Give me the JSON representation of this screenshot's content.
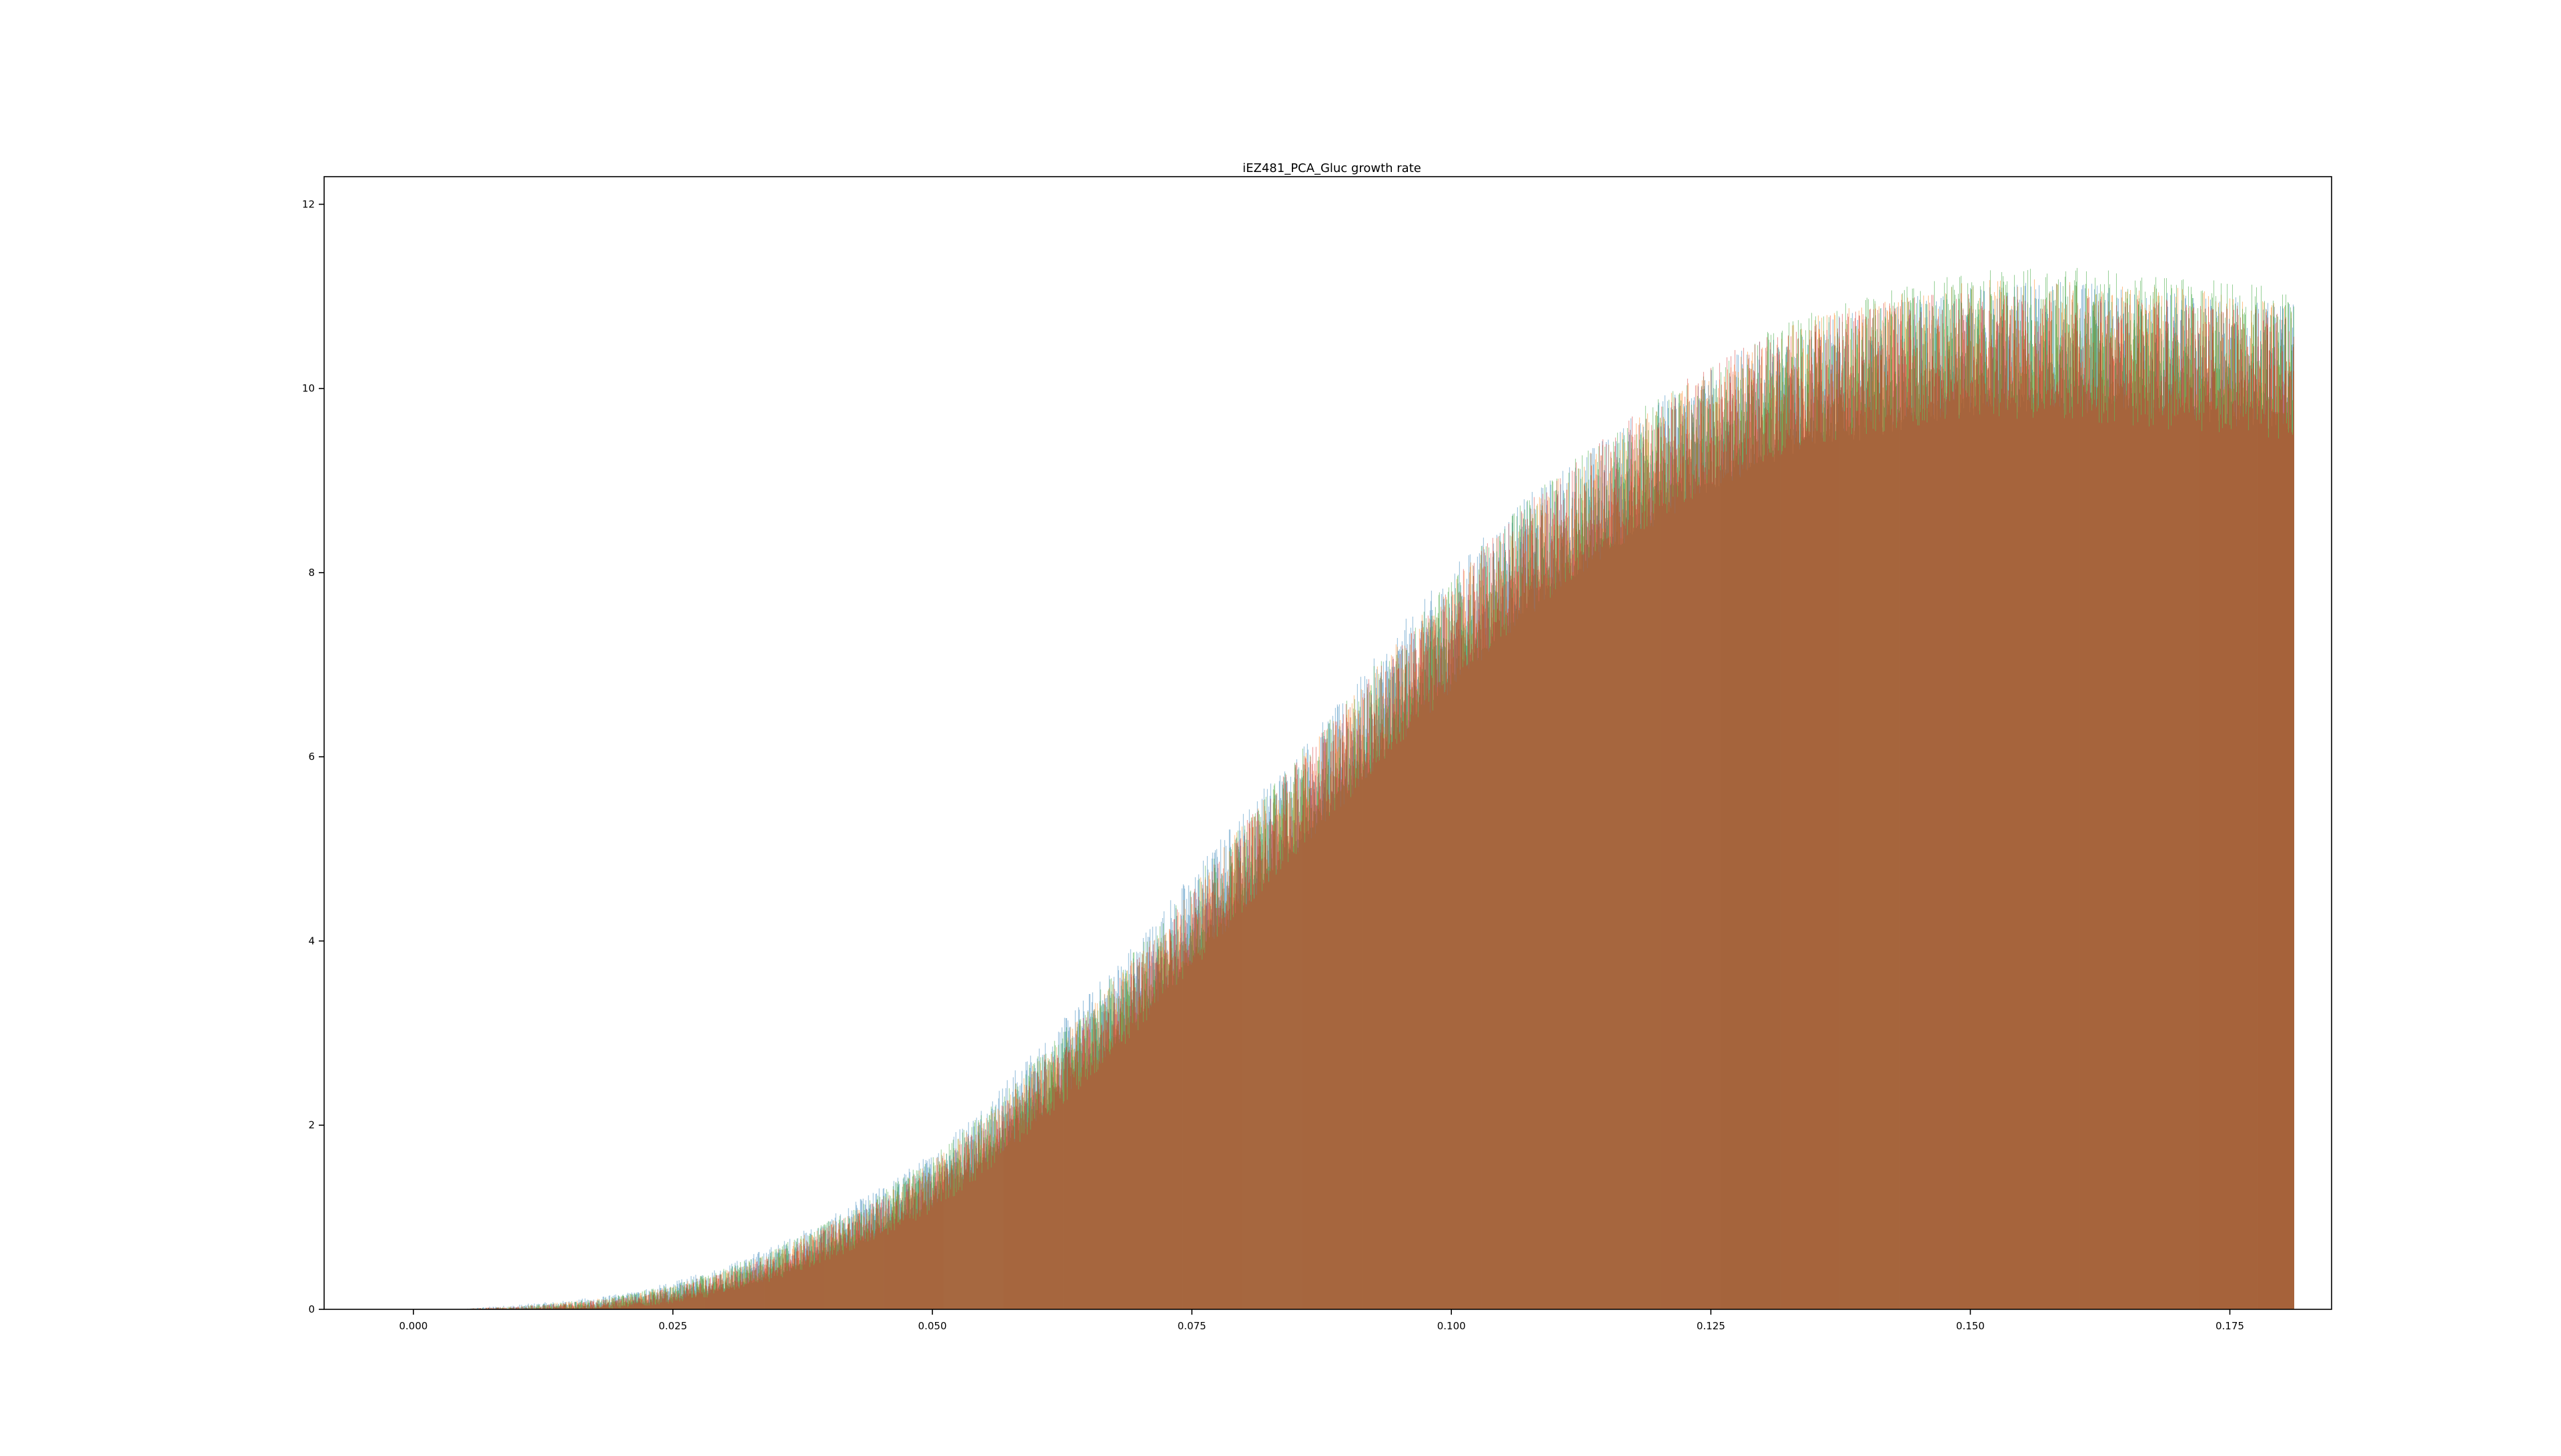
{
  "chart_data": {
    "type": "bar",
    "title": "iEZ481_PCA_Gluc growth rate",
    "xlabel": "",
    "ylabel": "",
    "xlim": [
      -0.0086,
      0.1848
    ],
    "ylim": [
      0,
      12.3
    ],
    "xticks": [
      0.0,
      0.025,
      0.05,
      0.075,
      0.1,
      0.125,
      0.15,
      0.175
    ],
    "xtick_labels": [
      "0.000",
      "0.025",
      "0.050",
      "0.075",
      "0.100",
      "0.125",
      "0.150",
      "0.175"
    ],
    "yticks": [
      0,
      2,
      4,
      6,
      8,
      10,
      12
    ],
    "ytick_labels": [
      "0",
      "2",
      "4",
      "6",
      "8",
      "10",
      "12"
    ],
    "grid": false,
    "legend": "none",
    "bin_range": [
      0.005,
      0.1812
    ],
    "series": [
      {
        "color": "#1f77b4",
        "opacity": 0.5,
        "envelope": {
          "x": [
            0.005,
            0.01,
            0.015,
            0.02,
            0.025,
            0.03,
            0.035,
            0.04,
            0.045,
            0.05,
            0.055,
            0.06,
            0.065,
            0.07,
            0.075,
            0.08,
            0.085,
            0.09,
            0.095,
            0.1,
            0.105,
            0.11,
            0.115,
            0.12,
            0.125,
            0.13,
            0.135,
            0.14,
            0.145,
            0.15,
            0.155,
            0.16,
            0.165,
            0.17,
            0.175,
            0.18
          ],
          "y": [
            0.0,
            0.02,
            0.05,
            0.1,
            0.2,
            0.35,
            0.55,
            0.8,
            1.1,
            1.45,
            1.95,
            2.5,
            3.05,
            3.65,
            4.3,
            4.95,
            5.55,
            6.15,
            6.85,
            7.45,
            8.0,
            8.45,
            8.85,
            9.25,
            9.55,
            9.85,
            10.05,
            10.15,
            10.3,
            10.4,
            10.45,
            10.45,
            10.4,
            10.35,
            10.3,
            10.25
          ]
        }
      },
      {
        "color": "#ff7f0e",
        "opacity": 0.5,
        "envelope": {
          "x": [
            0.005,
            0.01,
            0.015,
            0.02,
            0.025,
            0.03,
            0.035,
            0.04,
            0.045,
            0.05,
            0.055,
            0.06,
            0.065,
            0.07,
            0.075,
            0.08,
            0.085,
            0.09,
            0.095,
            0.1,
            0.105,
            0.11,
            0.115,
            0.12,
            0.125,
            0.13,
            0.135,
            0.14,
            0.145,
            0.15,
            0.155,
            0.16,
            0.165,
            0.17,
            0.175,
            0.18
          ],
          "y": [
            0.0,
            0.01,
            0.04,
            0.08,
            0.17,
            0.3,
            0.5,
            0.75,
            1.0,
            1.35,
            1.8,
            2.35,
            2.9,
            3.5,
            4.15,
            4.8,
            5.45,
            6.05,
            6.7,
            7.3,
            7.9,
            8.4,
            8.8,
            9.2,
            9.55,
            9.85,
            10.1,
            10.25,
            10.35,
            10.45,
            10.5,
            10.45,
            10.45,
            10.4,
            10.3,
            10.25
          ]
        }
      },
      {
        "color": "#2ca02c",
        "opacity": 0.5,
        "envelope": {
          "x": [
            0.005,
            0.01,
            0.015,
            0.02,
            0.025,
            0.03,
            0.035,
            0.04,
            0.045,
            0.05,
            0.055,
            0.06,
            0.065,
            0.07,
            0.075,
            0.08,
            0.085,
            0.09,
            0.095,
            0.1,
            0.105,
            0.11,
            0.115,
            0.12,
            0.125,
            0.13,
            0.135,
            0.14,
            0.145,
            0.15,
            0.155,
            0.16,
            0.165,
            0.17,
            0.175,
            0.18
          ],
          "y": [
            0.0,
            0.01,
            0.04,
            0.09,
            0.18,
            0.32,
            0.52,
            0.77,
            1.05,
            1.4,
            1.85,
            2.4,
            2.95,
            3.55,
            4.2,
            4.85,
            5.5,
            6.1,
            6.75,
            7.35,
            7.95,
            8.45,
            8.85,
            9.25,
            9.6,
            9.9,
            10.15,
            10.3,
            10.45,
            10.55,
            10.6,
            10.6,
            10.55,
            10.5,
            10.45,
            10.4
          ]
        }
      },
      {
        "color": "#d62728",
        "opacity": 0.5,
        "envelope": {
          "x": [
            0.005,
            0.01,
            0.015,
            0.02,
            0.025,
            0.03,
            0.035,
            0.04,
            0.045,
            0.05,
            0.055,
            0.06,
            0.065,
            0.07,
            0.075,
            0.08,
            0.085,
            0.09,
            0.095,
            0.1,
            0.105,
            0.11,
            0.115,
            0.12,
            0.125,
            0.13,
            0.135,
            0.14,
            0.145,
            0.15,
            0.155,
            0.16,
            0.165,
            0.17,
            0.175,
            0.18
          ],
          "y": [
            0.0,
            0.01,
            0.03,
            0.07,
            0.15,
            0.28,
            0.47,
            0.72,
            0.98,
            1.3,
            1.75,
            2.3,
            2.85,
            3.45,
            4.1,
            4.8,
            5.45,
            6.05,
            6.7,
            7.3,
            7.9,
            8.4,
            8.85,
            9.25,
            9.6,
            9.9,
            10.1,
            10.2,
            10.3,
            10.35,
            10.35,
            10.35,
            10.3,
            10.25,
            10.2,
            10.15
          ]
        }
      }
    ]
  }
}
